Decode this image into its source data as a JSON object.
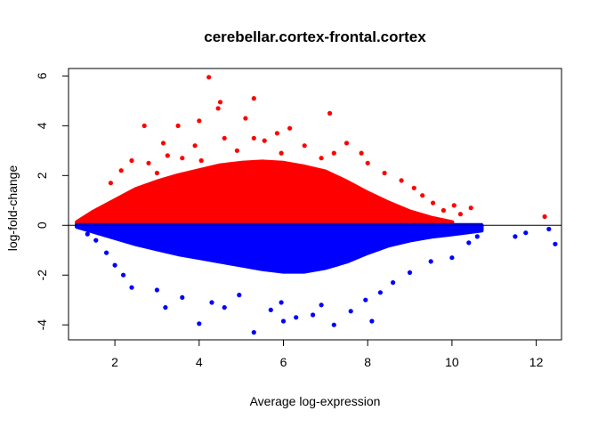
{
  "chart_data": {
    "type": "scatter",
    "title": "cerebellar.cortex-frontal.cortex",
    "xlabel": "Average log-expression",
    "ylabel": "log-fold-change",
    "xlim": [
      0.9,
      12.6
    ],
    "ylim": [
      -4.6,
      6.3
    ],
    "x_ticks": [
      2,
      4,
      6,
      8,
      10,
      12
    ],
    "y_ticks": [
      -4,
      -2,
      0,
      2,
      4,
      6
    ],
    "reference_line_y": 0,
    "grid": false,
    "legend": "none",
    "series": [
      {
        "color": "#ff0000",
        "points": [
          [
            4.23,
            5.95
          ],
          [
            5.3,
            5.1
          ],
          [
            4.5,
            4.95
          ],
          [
            7.1,
            4.5
          ],
          [
            4.45,
            4.7
          ],
          [
            2.7,
            4.0
          ],
          [
            3.5,
            4.0
          ],
          [
            5.1,
            4.3
          ],
          [
            4.0,
            4.2
          ],
          [
            6.15,
            3.9
          ],
          [
            5.85,
            3.7
          ],
          [
            4.6,
            3.5
          ],
          [
            3.15,
            3.3
          ],
          [
            7.5,
            3.3
          ],
          [
            3.9,
            3.2
          ],
          [
            5.55,
            3.4
          ],
          [
            6.5,
            3.2
          ],
          [
            7.85,
            2.9
          ],
          [
            3.25,
            2.8
          ],
          [
            2.4,
            2.6
          ],
          [
            8.0,
            2.5
          ],
          [
            4.9,
            3.0
          ],
          [
            7.2,
            2.9
          ],
          [
            2.8,
            2.5
          ],
          [
            3.6,
            2.7
          ],
          [
            6.9,
            2.7
          ],
          [
            5.3,
            3.5
          ],
          [
            8.4,
            2.1
          ],
          [
            8.8,
            1.8
          ],
          [
            9.1,
            1.5
          ],
          [
            9.3,
            1.2
          ],
          [
            9.55,
            0.9
          ],
          [
            9.8,
            0.6
          ],
          [
            10.05,
            0.8
          ],
          [
            10.2,
            0.45
          ],
          [
            10.45,
            0.7
          ],
          [
            12.2,
            0.35
          ],
          [
            2.15,
            2.2
          ],
          [
            1.9,
            1.7
          ],
          [
            3.0,
            2.1
          ],
          [
            4.05,
            2.6
          ],
          [
            5.95,
            2.9
          ]
        ]
      },
      {
        "color": "#0000ff",
        "points": [
          [
            5.3,
            -4.3
          ],
          [
            4.0,
            -3.95
          ],
          [
            7.2,
            -4.0
          ],
          [
            6.0,
            -3.85
          ],
          [
            3.2,
            -3.3
          ],
          [
            6.7,
            -3.6
          ],
          [
            6.3,
            -3.7
          ],
          [
            8.1,
            -3.85
          ],
          [
            7.6,
            -3.45
          ],
          [
            4.6,
            -3.3
          ],
          [
            5.7,
            -3.4
          ],
          [
            2.4,
            -2.5
          ],
          [
            2.2,
            -2.0
          ],
          [
            2.0,
            -1.6
          ],
          [
            1.8,
            -1.1
          ],
          [
            1.55,
            -0.6
          ],
          [
            1.35,
            -0.35
          ],
          [
            3.0,
            -2.6
          ],
          [
            3.6,
            -2.9
          ],
          [
            4.3,
            -3.1
          ],
          [
            6.9,
            -3.2
          ],
          [
            7.95,
            -3.0
          ],
          [
            8.6,
            -2.3
          ],
          [
            9.0,
            -1.9
          ],
          [
            9.5,
            -1.45
          ],
          [
            10.0,
            -1.3
          ],
          [
            10.4,
            -0.7
          ],
          [
            10.6,
            -0.45
          ],
          [
            11.5,
            -0.45
          ],
          [
            11.75,
            -0.3
          ],
          [
            12.45,
            -0.75
          ],
          [
            12.3,
            -0.15
          ],
          [
            4.95,
            -2.8
          ],
          [
            5.95,
            -3.1
          ],
          [
            8.3,
            -2.7
          ]
        ]
      }
    ]
  }
}
